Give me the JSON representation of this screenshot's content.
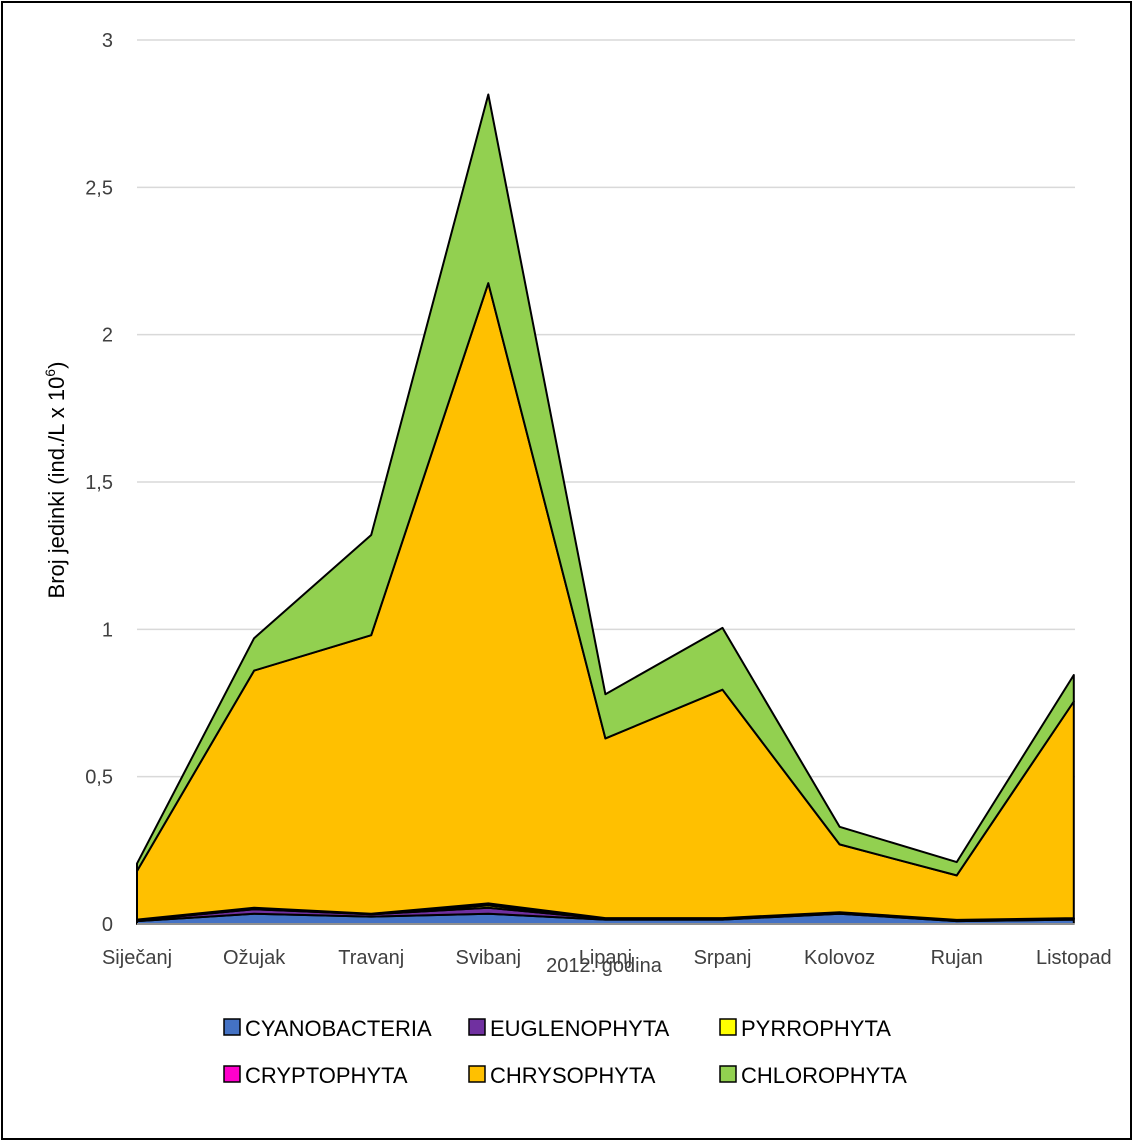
{
  "chart_data": {
    "type": "area",
    "stacked": true,
    "title": "",
    "xlabel": "2012. godina",
    "ylabel": {
      "base": "Broj jedinki (ind./L x 10",
      "sup": "6",
      "close": ")"
    },
    "ylim": [
      0,
      3
    ],
    "yticks": [
      "0",
      "0,5",
      "1",
      "1,5",
      "2",
      "2,5",
      "3"
    ],
    "ytick_values": [
      0,
      0.5,
      1,
      1.5,
      2,
      2.5,
      3
    ],
    "grid": true,
    "legend_position": "bottom",
    "categories": [
      "Siječanj",
      "Ožujak",
      "Travanj",
      "Svibanj",
      "Lipanj",
      "Srpanj",
      "Kolovoz",
      "Rujan",
      "Listopad"
    ],
    "series": [
      {
        "name": "CYANOBACTERIA",
        "color": "#4472C4",
        "values": [
          0.01,
          0.035,
          0.025,
          0.035,
          0.015,
          0.015,
          0.035,
          0.01,
          0.015
        ]
      },
      {
        "name": "EUGLENOPHYTA",
        "color": "#7030A0",
        "values": [
          0.003,
          0.015,
          0.008,
          0.02,
          0.003,
          0.003,
          0.003,
          0.002,
          0.003
        ]
      },
      {
        "name": "PYRROPHYTA",
        "color": "#FFFF00",
        "values": [
          0.001,
          0.002,
          0.001,
          0.008,
          0.001,
          0.001,
          0.001,
          0.001,
          0.001
        ]
      },
      {
        "name": "CRYPTOPHYTA",
        "color": "#FF00CC",
        "values": [
          0.001,
          0.003,
          0.001,
          0.007,
          0.001,
          0.001,
          0.001,
          0.001,
          0.001
        ]
      },
      {
        "name": "CHRYSOPHYTA",
        "color": "#FFC000",
        "values": [
          0.165,
          0.805,
          0.945,
          2.105,
          0.61,
          0.775,
          0.23,
          0.151,
          0.735
        ]
      },
      {
        "name": "CHLOROPHYTA",
        "color": "#92D050",
        "values": [
          0.025,
          0.11,
          0.34,
          0.64,
          0.15,
          0.21,
          0.06,
          0.045,
          0.09
        ]
      }
    ]
  }
}
